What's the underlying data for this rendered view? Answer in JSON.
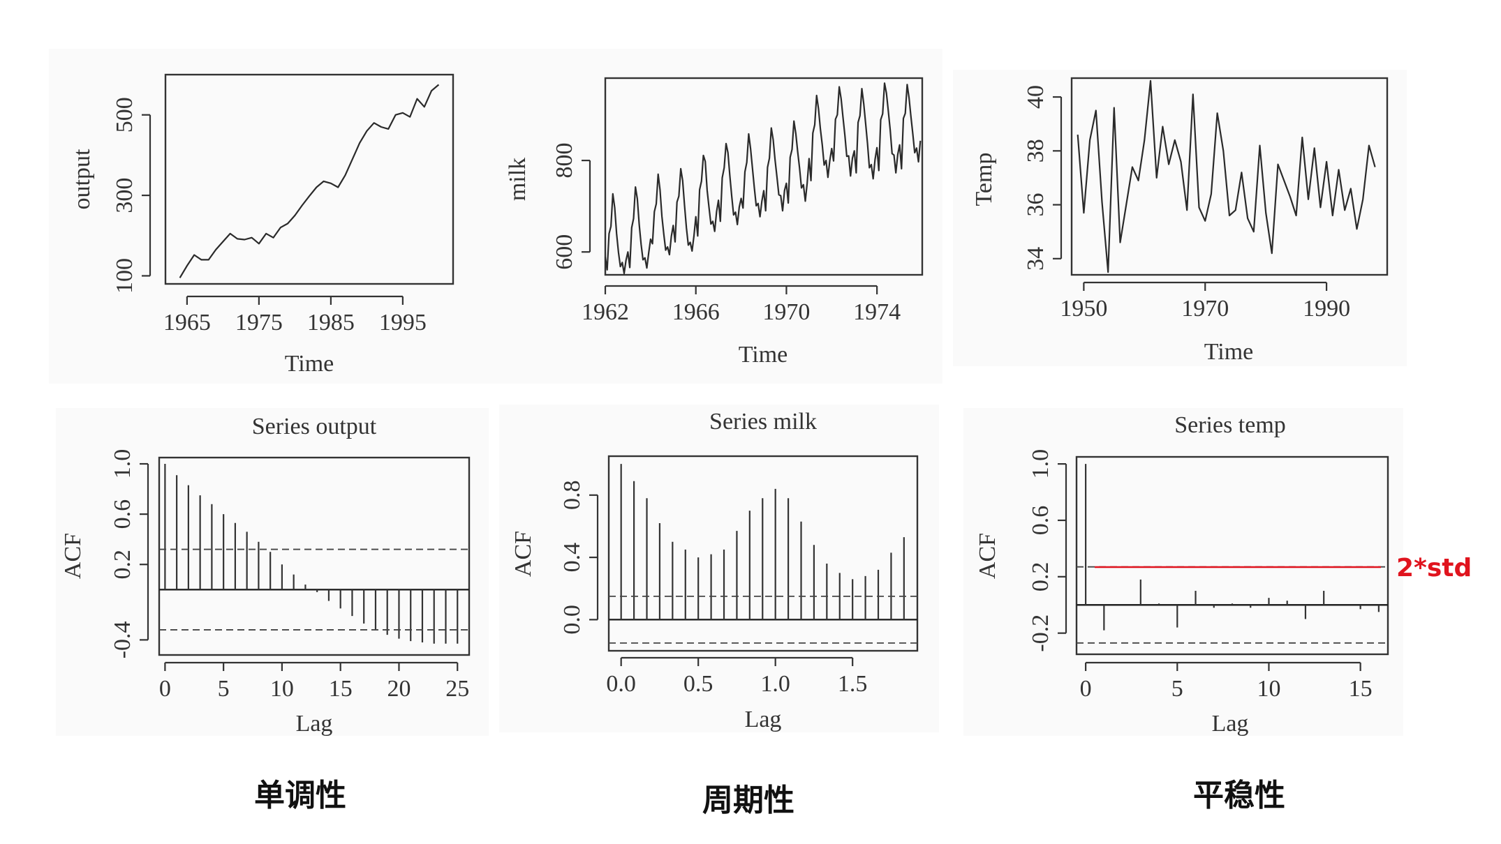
{
  "chart_data": [
    {
      "type": "line",
      "xlabel": "Time",
      "ylabel": "output",
      "xlim": [
        1962,
        2002
      ],
      "ylim": [
        80,
        600
      ],
      "xticks": [
        "1965",
        "1975",
        "1985",
        "1995"
      ],
      "yticks": [
        "100",
        "300",
        "500"
      ],
      "x": [
        1964,
        1965,
        1966,
        1967,
        1968,
        1969,
        1970,
        1971,
        1972,
        1973,
        1974,
        1975,
        1976,
        1977,
        1978,
        1979,
        1980,
        1981,
        1982,
        1983,
        1984,
        1985,
        1986,
        1987,
        1988,
        1989,
        1990,
        1991,
        1992,
        1993,
        1994,
        1995,
        1996,
        1997,
        1998,
        1999,
        2000
      ],
      "y": [
        95,
        125,
        152,
        140,
        140,
        165,
        185,
        205,
        192,
        190,
        195,
        180,
        205,
        195,
        220,
        230,
        250,
        275,
        298,
        320,
        335,
        330,
        320,
        350,
        390,
        430,
        460,
        480,
        470,
        465,
        500,
        505,
        495,
        540,
        520,
        560,
        575
      ]
    },
    {
      "type": "line",
      "xlabel": "Time",
      "ylabel": "milk",
      "xlim": [
        1962,
        1976
      ],
      "ylim": [
        550,
        980
      ],
      "xticks": [
        "1962",
        "1966",
        "1970",
        "1974"
      ],
      "yticks": [
        "600",
        "800"
      ],
      "x_start": 1962,
      "frequency": 12,
      "y": [
        589,
        561,
        640,
        656,
        727,
        697,
        640,
        599,
        568,
        577,
        553,
        582,
        600,
        566,
        653,
        673,
        742,
        716,
        660,
        617,
        583,
        587,
        565,
        598,
        628,
        618,
        688,
        705,
        770,
        736,
        678,
        639,
        604,
        611,
        594,
        634,
        658,
        622,
        709,
        722,
        782,
        756,
        702,
        653,
        615,
        621,
        602,
        635,
        677,
        635,
        736,
        755,
        811,
        798,
        735,
        697,
        661,
        667,
        645,
        688,
        713,
        667,
        762,
        784,
        837,
        817,
        767,
        722,
        681,
        687,
        660,
        698,
        717,
        696,
        775,
        796,
        858,
        826,
        783,
        740,
        701,
        706,
        677,
        711,
        734,
        690,
        785,
        805,
        871,
        845,
        801,
        764,
        725,
        723,
        690,
        734,
        750,
        707,
        807,
        824,
        886,
        859,
        819,
        783,
        740,
        747,
        711,
        751,
        804,
        756,
        860,
        878,
        942,
        913,
        869,
        834,
        790,
        800,
        763,
        800,
        826,
        799,
        890,
        900,
        961,
        935,
        894,
        855,
        809,
        810,
        766,
        805,
        821,
        773,
        883,
        898,
        957,
        924,
        881,
        837,
        784,
        791,
        760,
        802,
        828,
        778,
        889,
        902,
        969,
        947,
        908,
        867,
        815,
        812,
        773,
        813,
        834,
        782,
        892,
        903,
        966,
        937,
        896,
        858,
        817,
        827,
        797,
        843
      ]
    },
    {
      "type": "line",
      "xlabel": "Time",
      "ylabel": "Temp",
      "xlim": [
        1948,
        2000
      ],
      "ylim": [
        33.4,
        40.7
      ],
      "xticks": [
        "1950",
        "1970",
        "1990"
      ],
      "yticks": [
        "34",
        "36",
        "38",
        "40"
      ],
      "x": [
        1949,
        1950,
        1951,
        1952,
        1953,
        1954,
        1955,
        1956,
        1957,
        1958,
        1959,
        1960,
        1961,
        1962,
        1963,
        1964,
        1965,
        1966,
        1967,
        1968,
        1969,
        1970,
        1971,
        1972,
        1973,
        1974,
        1975,
        1976,
        1977,
        1978,
        1979,
        1980,
        1981,
        1982,
        1983,
        1984,
        1985,
        1986,
        1987,
        1988,
        1989,
        1990,
        1991,
        1992,
        1993,
        1994,
        1995,
        1996,
        1997,
        1998
      ],
      "y": [
        38.6,
        35.7,
        38.4,
        39.5,
        36.1,
        33.5,
        39.6,
        34.6,
        36.0,
        37.4,
        36.9,
        38.4,
        40.6,
        37.0,
        38.9,
        37.5,
        38.4,
        37.6,
        35.8,
        40.1,
        35.9,
        35.4,
        36.4,
        39.4,
        38.0,
        35.6,
        35.8,
        37.2,
        35.5,
        35.0,
        38.2,
        35.7,
        34.2,
        37.5,
        36.9,
        36.3,
        35.6,
        38.5,
        36.2,
        38.1,
        35.9,
        37.6,
        35.6,
        37.3,
        35.8,
        36.6,
        35.1,
        36.2,
        38.2,
        37.4
      ]
    },
    {
      "type": "bar",
      "title": "Series output",
      "xlabel": "Lag",
      "ylabel": "ACF",
      "xlim": [
        -0.5,
        26
      ],
      "ylim": [
        -0.52,
        1.05
      ],
      "xticks": [
        "0",
        "5",
        "10",
        "15",
        "20",
        "25"
      ],
      "yticks": [
        "-0.4",
        "0.2",
        "0.6",
        "1.0"
      ],
      "ci": 0.32,
      "lags": [
        0,
        1,
        2,
        3,
        4,
        5,
        6,
        7,
        8,
        9,
        10,
        11,
        12,
        13,
        14,
        15,
        16,
        17,
        18,
        19,
        20,
        21,
        22,
        23,
        24,
        25
      ],
      "values": [
        1.0,
        0.91,
        0.83,
        0.75,
        0.68,
        0.6,
        0.53,
        0.46,
        0.38,
        0.3,
        0.2,
        0.12,
        0.04,
        -0.02,
        -0.09,
        -0.15,
        -0.21,
        -0.27,
        -0.32,
        -0.36,
        -0.39,
        -0.41,
        -0.42,
        -0.43,
        -0.43,
        -0.43
      ]
    },
    {
      "type": "bar",
      "title": "Series milk",
      "xlabel": "Lag",
      "ylabel": "ACF",
      "xlim": [
        -0.08,
        1.92
      ],
      "ylim": [
        -0.2,
        1.05
      ],
      "xticks": [
        "0.0",
        "0.5",
        "1.0",
        "1.5"
      ],
      "yticks": [
        "0.0",
        "0.4",
        "0.8"
      ],
      "ci": 0.15,
      "lags": [
        0.0,
        0.0833,
        0.1667,
        0.25,
        0.3333,
        0.4167,
        0.5,
        0.5833,
        0.6667,
        0.75,
        0.8333,
        0.9167,
        1.0,
        1.0833,
        1.1667,
        1.25,
        1.3333,
        1.4167,
        1.5,
        1.5833,
        1.6667,
        1.75,
        1.8333
      ],
      "values": [
        1.0,
        0.89,
        0.78,
        0.62,
        0.5,
        0.45,
        0.4,
        0.42,
        0.45,
        0.57,
        0.7,
        0.78,
        0.84,
        0.78,
        0.63,
        0.48,
        0.36,
        0.3,
        0.26,
        0.28,
        0.32,
        0.43,
        0.53
      ]
    },
    {
      "type": "bar",
      "title": "Series temp",
      "xlabel": "Lag",
      "ylabel": "ACF",
      "xlim": [
        -0.5,
        16.5
      ],
      "ylim": [
        -0.35,
        1.05
      ],
      "xticks": [
        "0",
        "5",
        "10",
        "15"
      ],
      "yticks": [
        "-0.2",
        "0.2",
        "0.6",
        "1.0"
      ],
      "ci": 0.27,
      "ci_annotation": "2*std",
      "annotation_color": "#e0141e",
      "lags": [
        0,
        1,
        2,
        3,
        4,
        5,
        6,
        7,
        8,
        9,
        10,
        11,
        12,
        13,
        14,
        15,
        16
      ],
      "values": [
        1.0,
        -0.18,
        0.0,
        0.18,
        0.01,
        -0.16,
        0.1,
        -0.02,
        0.01,
        -0.02,
        0.05,
        0.03,
        -0.1,
        0.1,
        0.0,
        -0.03,
        -0.05
      ]
    }
  ],
  "captions": {
    "monotonic": "单调性",
    "periodic": "周期性",
    "stationary": "平稳性"
  }
}
